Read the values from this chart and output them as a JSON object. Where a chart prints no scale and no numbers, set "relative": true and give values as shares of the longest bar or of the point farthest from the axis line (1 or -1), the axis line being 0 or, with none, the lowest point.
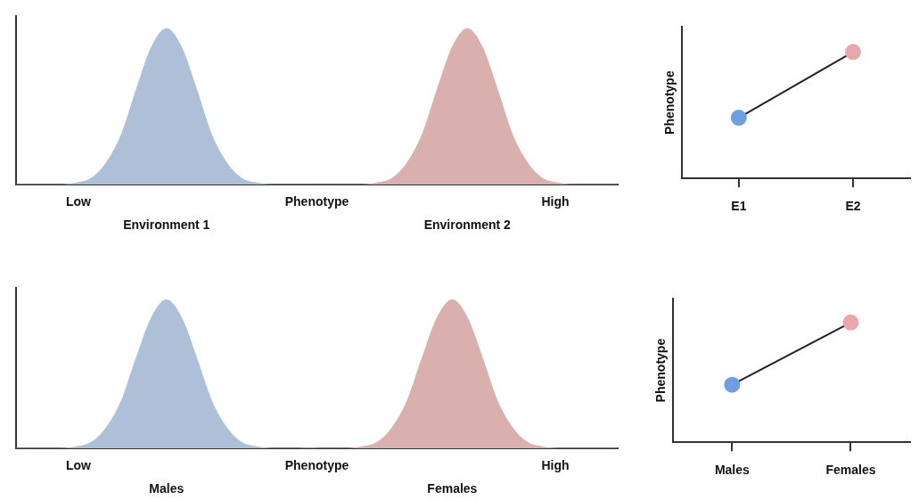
{
  "chart_data": [
    {
      "type": "area",
      "relative": true,
      "xlabel": "Phenotype",
      "annotations": [
        "Low",
        "High"
      ],
      "tick_labels": false,
      "grid": false,
      "legend": false,
      "categories": [
        null,
        null,
        null,
        null,
        null,
        null,
        null,
        null,
        null,
        null,
        null,
        null,
        null,
        null,
        null,
        null,
        null,
        null,
        null,
        null,
        null,
        null,
        null,
        null,
        null,
        null,
        null,
        null,
        null,
        null,
        null,
        null,
        null,
        null,
        null,
        null,
        null,
        null,
        null,
        null,
        null
      ],
      "series": [
        {
          "name": "Environment 1",
          "color": "#adc0d8",
          "values": [
            0,
            0,
            0,
            0,
            0.01,
            0.04,
            0.14,
            0.32,
            0.61,
            0.88,
            1,
            0.88,
            0.61,
            0.32,
            0.14,
            0.04,
            0.01,
            0,
            0,
            0,
            0,
            null,
            null,
            null,
            null,
            null,
            null,
            null,
            null,
            null,
            null,
            null,
            null,
            null,
            null,
            null,
            null,
            null,
            null,
            null,
            null
          ]
        },
        {
          "name": "Environment 2",
          "color": "#d9b0ae",
          "values": [
            null,
            null,
            null,
            null,
            null,
            null,
            null,
            null,
            null,
            null,
            null,
            null,
            null,
            null,
            null,
            null,
            null,
            null,
            null,
            null,
            0,
            0,
            0,
            0,
            0.01,
            0.04,
            0.14,
            0.32,
            0.61,
            0.88,
            1,
            0.88,
            0.61,
            0.32,
            0.14,
            0.04,
            0.01,
            0,
            0,
            0,
            0
          ]
        }
      ]
    },
    {
      "type": "line",
      "relative": true,
      "ylabel": "Phenotype",
      "tick_labels": "x",
      "grid": false,
      "legend": false,
      "marker": "circle",
      "categories": [
        "E1",
        "E2"
      ],
      "series": [
        {
          "color": "#222222",
          "colors": [
            "#6f9fe0",
            "#e8a7ab"
          ],
          "values": [
            0.48,
            1
          ]
        }
      ]
    },
    {
      "type": "area",
      "relative": true,
      "xlabel": "Phenotype",
      "annotations": [
        "Low",
        "High"
      ],
      "tick_labels": false,
      "grid": false,
      "legend": false,
      "categories": [
        null,
        null,
        null,
        null,
        null,
        null,
        null,
        null,
        null,
        null,
        null,
        null,
        null,
        null,
        null,
        null,
        null,
        null,
        null,
        null,
        null,
        null,
        null,
        null,
        null,
        null,
        null,
        null,
        null,
        null,
        null,
        null,
        null,
        null,
        null,
        null,
        null,
        null,
        null,
        null,
        null
      ],
      "series": [
        {
          "name": "Males",
          "color": "#adc0d8",
          "values": [
            0,
            0,
            0,
            0,
            0.01,
            0.04,
            0.14,
            0.32,
            0.61,
            0.88,
            1,
            0.88,
            0.61,
            0.32,
            0.14,
            0.04,
            0.01,
            0,
            0,
            0,
            0,
            null,
            null,
            null,
            null,
            null,
            null,
            null,
            null,
            null,
            null,
            null,
            null,
            null,
            null,
            null,
            null,
            null,
            null,
            null,
            null
          ]
        },
        {
          "name": "Females",
          "color": "#d9b0ae",
          "values": [
            null,
            null,
            null,
            null,
            null,
            null,
            null,
            null,
            null,
            null,
            null,
            null,
            null,
            null,
            null,
            null,
            null,
            null,
            null,
            0,
            0,
            0,
            0,
            0.01,
            0.04,
            0.14,
            0.32,
            0.61,
            0.88,
            1,
            0.88,
            0.61,
            0.32,
            0.14,
            0.04,
            0.01,
            0,
            0,
            0,
            0,
            0
          ]
        }
      ]
    },
    {
      "type": "line",
      "relative": true,
      "ylabel": "Phenotype",
      "tick_labels": "x",
      "grid": false,
      "legend": false,
      "marker": "circle",
      "categories": [
        "Males",
        "Females"
      ],
      "series": [
        {
          "color": "#222222",
          "colors": [
            "#6f9fe0",
            "#e8a7ab"
          ],
          "values": [
            0.48,
            1
          ]
        }
      ]
    }
  ]
}
